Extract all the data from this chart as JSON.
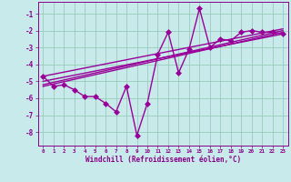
{
  "x": [
    0,
    1,
    2,
    3,
    4,
    5,
    6,
    7,
    8,
    9,
    10,
    11,
    12,
    13,
    14,
    15,
    16,
    17,
    18,
    19,
    20,
    21,
    22,
    23
  ],
  "y_line": [
    -4.7,
    -5.3,
    -5.2,
    -5.5,
    -5.9,
    -5.9,
    -6.3,
    -6.8,
    -5.3,
    -8.2,
    -6.3,
    -3.4,
    -2.1,
    -4.5,
    -3.1,
    -0.7,
    -3.0,
    -2.5,
    -2.6,
    -2.1,
    -2.0,
    -2.1,
    -2.1,
    -2.2
  ],
  "trend1_x": [
    0,
    23
  ],
  "trend1_y": [
    -5.2,
    -2.0
  ],
  "trend2_x": [
    0,
    23
  ],
  "trend2_y": [
    -5.0,
    -2.2
  ],
  "trend3_x": [
    0,
    23
  ],
  "trend3_y": [
    -4.7,
    -1.9
  ],
  "trend4_x": [
    0,
    23
  ],
  "trend4_y": [
    -5.3,
    -2.1
  ],
  "line_color": "#990099",
  "bg_color": "#c8eaea",
  "grid_color": "#99ccbb",
  "xlabel": "Windchill (Refroidissement éolien,°C)",
  "ylim": [
    -8.8,
    -0.3
  ],
  "xlim": [
    -0.5,
    23.5
  ],
  "yticks": [
    -8,
    -7,
    -6,
    -5,
    -4,
    -3,
    -2,
    -1
  ],
  "xticks": [
    0,
    1,
    2,
    3,
    4,
    5,
    6,
    7,
    8,
    9,
    10,
    11,
    12,
    13,
    14,
    15,
    16,
    17,
    18,
    19,
    20,
    21,
    22,
    23
  ],
  "font_color": "#880088",
  "markersize": 3,
  "linewidth": 1.0
}
